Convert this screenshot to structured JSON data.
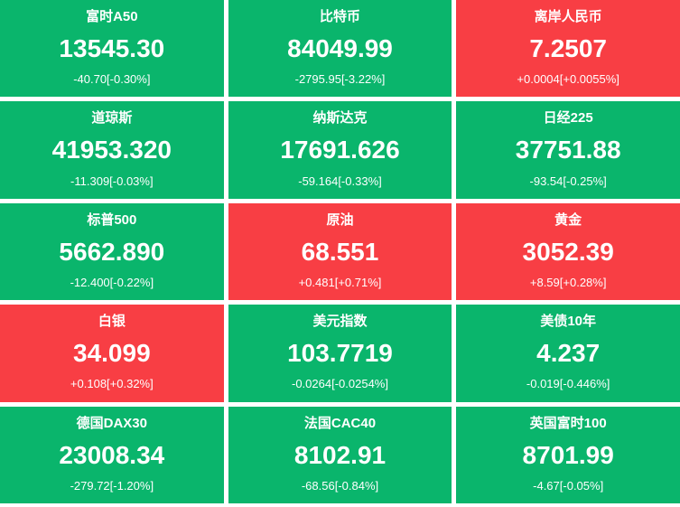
{
  "colors": {
    "down_bg": "#0ab56c",
    "up_bg": "#f83e44",
    "text": "#ffffff",
    "page_bg": "#ffffff"
  },
  "tiles": [
    {
      "name": "富时A50",
      "price": "13545.30",
      "change": "-40.70[-0.30%]",
      "direction": "down"
    },
    {
      "name": "比特币",
      "price": "84049.99",
      "change": "-2795.95[-3.22%]",
      "direction": "down"
    },
    {
      "name": "离岸人民币",
      "price": "7.2507",
      "change": "+0.0004[+0.0055%]",
      "direction": "up"
    },
    {
      "name": "道琼斯",
      "price": "41953.320",
      "change": "-11.309[-0.03%]",
      "direction": "down"
    },
    {
      "name": "纳斯达克",
      "price": "17691.626",
      "change": "-59.164[-0.33%]",
      "direction": "down"
    },
    {
      "name": "日经225",
      "price": "37751.88",
      "change": "-93.54[-0.25%]",
      "direction": "down"
    },
    {
      "name": "标普500",
      "price": "5662.890",
      "change": "-12.400[-0.22%]",
      "direction": "down"
    },
    {
      "name": "原油",
      "price": "68.551",
      "change": "+0.481[+0.71%]",
      "direction": "up"
    },
    {
      "name": "黄金",
      "price": "3052.39",
      "change": "+8.59[+0.28%]",
      "direction": "up"
    },
    {
      "name": "白银",
      "price": "34.099",
      "change": "+0.108[+0.32%]",
      "direction": "up"
    },
    {
      "name": "美元指数",
      "price": "103.7719",
      "change": "-0.0264[-0.0254%]",
      "direction": "down"
    },
    {
      "name": "美债10年",
      "price": "4.237",
      "change": "-0.019[-0.446%]",
      "direction": "down"
    },
    {
      "name": "德国DAX30",
      "price": "23008.34",
      "change": "-279.72[-1.20%]",
      "direction": "down"
    },
    {
      "name": "法国CAC40",
      "price": "8102.91",
      "change": "-68.56[-0.84%]",
      "direction": "down"
    },
    {
      "name": "英国富时100",
      "price": "8701.99",
      "change": "-4.67[-0.05%]",
      "direction": "down"
    }
  ]
}
